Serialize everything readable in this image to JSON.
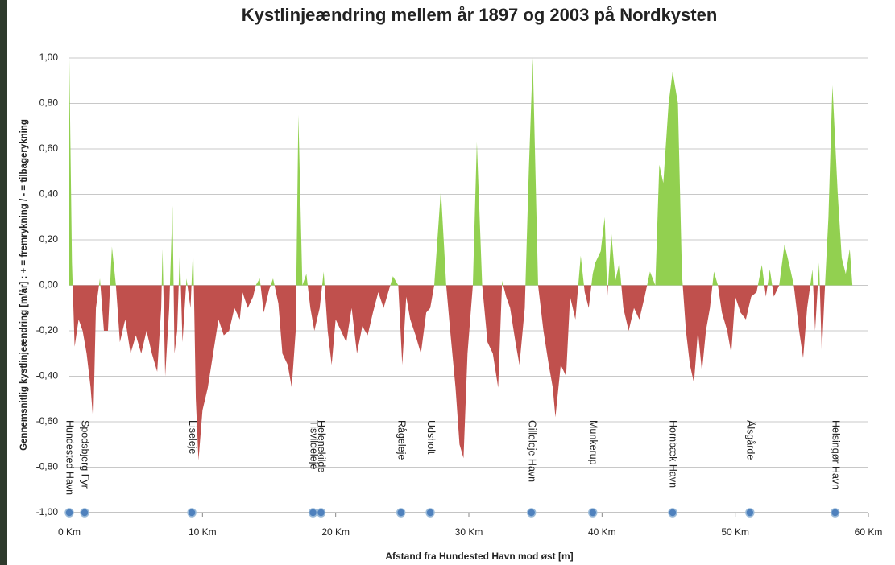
{
  "chart_data": {
    "type": "area",
    "title": "Kystlinjeændring mellem år 1897 og 2003 på Nordkysten",
    "x_label": "Afstand fra Hundested Havn mod øst [m]",
    "y_label": "Gennemsnitlig kystlinjeændring [m/år] : + = fremrykning / - = tilbagerykning",
    "positive_color": "#92d050",
    "negative_color": "#c0504d",
    "grid": true,
    "xlim": [
      0,
      60
    ],
    "ylim": [
      -1,
      1
    ],
    "xticks": [
      {
        "value": 0,
        "label": "0 Km"
      },
      {
        "value": 10,
        "label": "10 Km"
      },
      {
        "value": 20,
        "label": "20 Km"
      },
      {
        "value": 30,
        "label": "30 Km"
      },
      {
        "value": 40,
        "label": "40 Km"
      },
      {
        "value": 50,
        "label": "50 Km"
      },
      {
        "value": 60,
        "label": "60 Km"
      }
    ],
    "yticks": [
      {
        "value": -1,
        "label": "-1,00"
      },
      {
        "value": -0.8,
        "label": "-0,80"
      },
      {
        "value": -0.6,
        "label": "-0,60"
      },
      {
        "value": -0.4,
        "label": "-0,40"
      },
      {
        "value": -0.2,
        "label": "-0,20"
      },
      {
        "value": 0,
        "label": "0,00"
      },
      {
        "value": 0.2,
        "label": "0,20"
      },
      {
        "value": 0.4,
        "label": "0,40"
      },
      {
        "value": 0.6,
        "label": "0,60"
      },
      {
        "value": 0.8,
        "label": "0,80"
      },
      {
        "value": 1,
        "label": "1,00"
      }
    ],
    "x": [
      0,
      0.2,
      0.4,
      0.7,
      1.0,
      1.3,
      1.6,
      1.8,
      2.0,
      2.3,
      2.6,
      2.9,
      3.2,
      3.5,
      3.8,
      4.2,
      4.6,
      5.0,
      5.4,
      5.8,
      6.2,
      6.6,
      6.9,
      7.0,
      7.2,
      7.5,
      7.75,
      7.9,
      8.1,
      8.3,
      8.5,
      8.8,
      9.1,
      9.3,
      9.5,
      9.7,
      10.0,
      10.4,
      10.8,
      11.2,
      11.6,
      12.0,
      12.4,
      12.8,
      13.0,
      13.4,
      13.8,
      14.0,
      14.3,
      14.6,
      15.0,
      15.3,
      15.7,
      16.0,
      16.4,
      16.7,
      17.0,
      17.2,
      17.5,
      17.8,
      18.1,
      18.4,
      18.8,
      19.1,
      19.4,
      19.7,
      20.0,
      20.4,
      20.8,
      21.2,
      21.6,
      22.0,
      22.4,
      22.8,
      23.2,
      23.6,
      24.0,
      24.3,
      24.7,
      25.0,
      25.3,
      25.6,
      26.0,
      26.4,
      26.8,
      27.1,
      27.4,
      27.9,
      28.3,
      28.6,
      29.0,
      29.3,
      29.6,
      29.9,
      30.3,
      30.6,
      31.0,
      31.4,
      31.8,
      32.2,
      32.5,
      32.8,
      33.1,
      33.5,
      33.8,
      34.2,
      34.5,
      34.8,
      35.2,
      35.6,
      36.0,
      36.3,
      36.5,
      36.9,
      37.3,
      37.6,
      38.0,
      38.4,
      38.7,
      39.0,
      39.3,
      39.5,
      39.9,
      40.2,
      40.4,
      40.7,
      41.0,
      41.3,
      41.6,
      42.0,
      42.4,
      42.8,
      43.2,
      43.6,
      44.0,
      44.3,
      44.6,
      45.0,
      45.3,
      45.7,
      46.0,
      46.3,
      46.6,
      46.9,
      47.2,
      47.5,
      47.8,
      48.1,
      48.4,
      48.7,
      49.0,
      49.4,
      49.7,
      50.0,
      50.4,
      50.8,
      51.2,
      51.6,
      52.0,
      52.3,
      52.6,
      52.9,
      53.3,
      53.7,
      54.1,
      54.4,
      54.8,
      55.1,
      55.4,
      55.8,
      56.0,
      56.3,
      56.5,
      56.7,
      57.0,
      57.3,
      57.7,
      58.0,
      58.3,
      58.6,
      58.8
    ],
    "values": [
      1.0,
      0.1,
      -0.27,
      -0.15,
      -0.2,
      -0.3,
      -0.45,
      -0.6,
      -0.1,
      0.03,
      -0.2,
      -0.2,
      0.17,
      0.0,
      -0.25,
      -0.15,
      -0.3,
      -0.22,
      -0.3,
      -0.2,
      -0.3,
      -0.38,
      -0.1,
      0.16,
      -0.4,
      -0.1,
      0.35,
      -0.3,
      -0.2,
      0.15,
      -0.25,
      0.03,
      -0.1,
      0.17,
      -0.5,
      -0.77,
      -0.55,
      -0.45,
      -0.3,
      -0.15,
      -0.22,
      -0.2,
      -0.1,
      -0.15,
      -0.03,
      -0.1,
      -0.05,
      0.0,
      0.03,
      -0.12,
      -0.02,
      0.03,
      -0.08,
      -0.3,
      -0.35,
      -0.45,
      -0.2,
      0.75,
      0.0,
      0.05,
      -0.1,
      -0.2,
      -0.1,
      0.06,
      -0.2,
      -0.35,
      -0.15,
      -0.2,
      -0.25,
      -0.1,
      -0.3,
      -0.18,
      -0.22,
      -0.12,
      -0.03,
      -0.1,
      -0.02,
      0.04,
      0.0,
      -0.35,
      -0.05,
      -0.15,
      -0.22,
      -0.3,
      -0.12,
      -0.1,
      0.0,
      0.42,
      0.0,
      -0.2,
      -0.45,
      -0.7,
      -0.76,
      -0.3,
      0.0,
      0.63,
      0.0,
      -0.25,
      -0.3,
      -0.45,
      0.02,
      -0.05,
      -0.1,
      -0.25,
      -0.35,
      -0.1,
      0.5,
      1.0,
      0.0,
      -0.2,
      -0.35,
      -0.45,
      -0.58,
      -0.35,
      -0.4,
      -0.05,
      -0.15,
      0.13,
      -0.03,
      -0.1,
      0.05,
      0.1,
      0.15,
      0.3,
      -0.05,
      0.23,
      0.02,
      0.1,
      -0.1,
      -0.2,
      -0.1,
      -0.15,
      -0.05,
      0.06,
      0.0,
      0.53,
      0.45,
      0.8,
      0.94,
      0.8,
      0.05,
      -0.2,
      -0.35,
      -0.43,
      -0.2,
      -0.38,
      -0.2,
      -0.1,
      0.06,
      0.0,
      -0.12,
      -0.2,
      -0.3,
      -0.05,
      -0.12,
      -0.15,
      -0.05,
      -0.03,
      0.09,
      -0.05,
      0.07,
      -0.05,
      0.0,
      0.18,
      0.08,
      0.0,
      -0.2,
      -0.32,
      -0.1,
      0.07,
      -0.2,
      0.1,
      -0.3,
      -0.05,
      0.3,
      0.88,
      0.4,
      0.12,
      0.05,
      0.16,
      0.0
    ],
    "locations": {
      "names": [
        "Hundested Havn",
        "Spodsbjerg Fyr",
        "Liseleje",
        "Tisvildeleje",
        "Helenekilde",
        "Rågeleje",
        "Udsholt",
        "Gilleleje Havn",
        "Munkerup",
        "Hornbæk Havn",
        "Ålsgårde",
        "Helsingør Havn"
      ],
      "x": [
        0,
        1.15,
        9.2,
        18.3,
        18.9,
        24.9,
        27.1,
        34.7,
        39.3,
        45.3,
        51.1,
        57.5
      ],
      "y": [
        -1,
        -1,
        -1,
        -1,
        -1,
        -1,
        -1,
        -1,
        -1,
        -1,
        -1,
        -1
      ],
      "color": "#4f81bd"
    }
  }
}
